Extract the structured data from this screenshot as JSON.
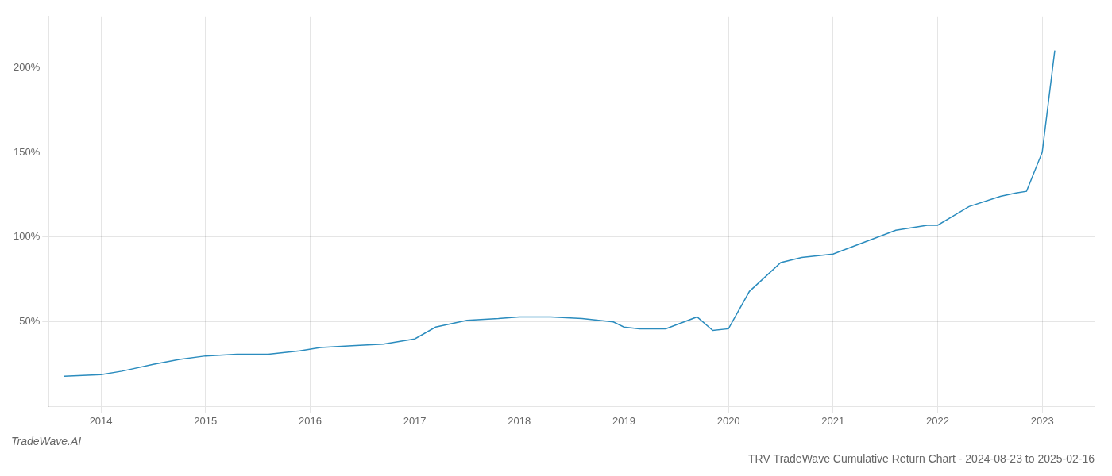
{
  "chart_data": {
    "type": "line",
    "title": "TRV TradeWave Cumulative Return Chart - 2024-08-23 to 2025-02-16",
    "annotations": [
      "TradeWave.AI"
    ],
    "x": [
      2013.65,
      2014.0,
      2014.2,
      2014.5,
      2014.75,
      2015.0,
      2015.3,
      2015.6,
      2015.9,
      2016.1,
      2016.4,
      2016.7,
      2017.0,
      2017.2,
      2017.5,
      2017.8,
      2018.0,
      2018.3,
      2018.6,
      2018.9,
      2019.0,
      2019.15,
      2019.4,
      2019.7,
      2019.85,
      2020.0,
      2020.2,
      2020.5,
      2020.7,
      2021.0,
      2021.3,
      2021.6,
      2021.9,
      2022.0,
      2022.3,
      2022.6,
      2022.75,
      2022.85,
      2023.0,
      2023.12
    ],
    "values": [
      18,
      19,
      21,
      25,
      28,
      30,
      31,
      31,
      33,
      35,
      36,
      37,
      40,
      47,
      51,
      52,
      53,
      53,
      52,
      50,
      47,
      46,
      46,
      53,
      45,
      46,
      68,
      85,
      88,
      90,
      97,
      104,
      107,
      107,
      118,
      124,
      126,
      127,
      150,
      210
    ],
    "color": "#2b8cbe",
    "xlim": [
      2013.5,
      2023.5
    ],
    "xticks": [
      2014,
      2015,
      2016,
      2017,
      2018,
      2019,
      2020,
      2021,
      2022,
      2023
    ],
    "ylim": [
      0,
      230
    ],
    "yticks": [
      {
        "value": 50,
        "label": "50%"
      },
      {
        "value": 100,
        "label": "100%"
      },
      {
        "value": 150,
        "label": "150%"
      },
      {
        "value": 200,
        "label": "200%"
      }
    ],
    "grid": true
  }
}
